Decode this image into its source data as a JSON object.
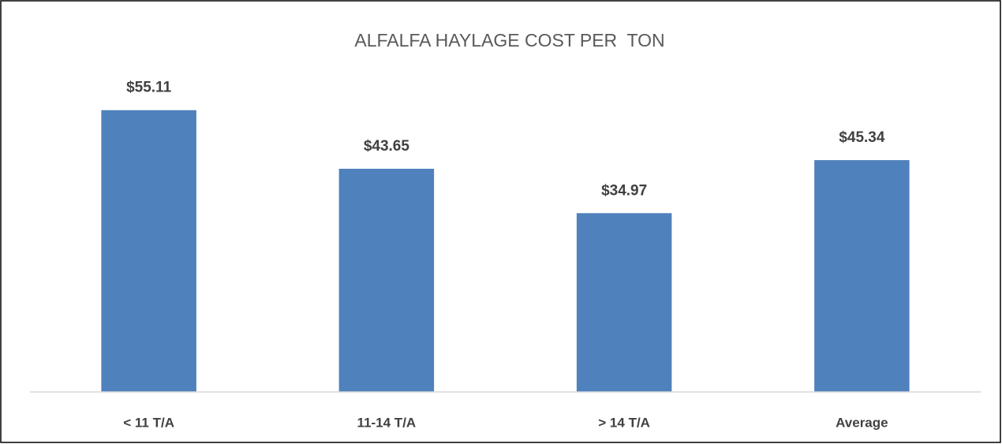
{
  "chart_data": {
    "type": "bar",
    "title": "ALFALFA HAYLAGE COST PER  TON",
    "categories": [
      "< 11 T/A",
      "11-14 T/A",
      "> 14 T/A",
      "Average"
    ],
    "values": [
      55.11,
      43.65,
      34.97,
      45.34
    ],
    "value_labels": [
      "$55.11",
      "$43.65",
      "$34.97",
      "$45.34"
    ],
    "color": "#4f81bd",
    "ylim": [
      0,
      60
    ]
  }
}
